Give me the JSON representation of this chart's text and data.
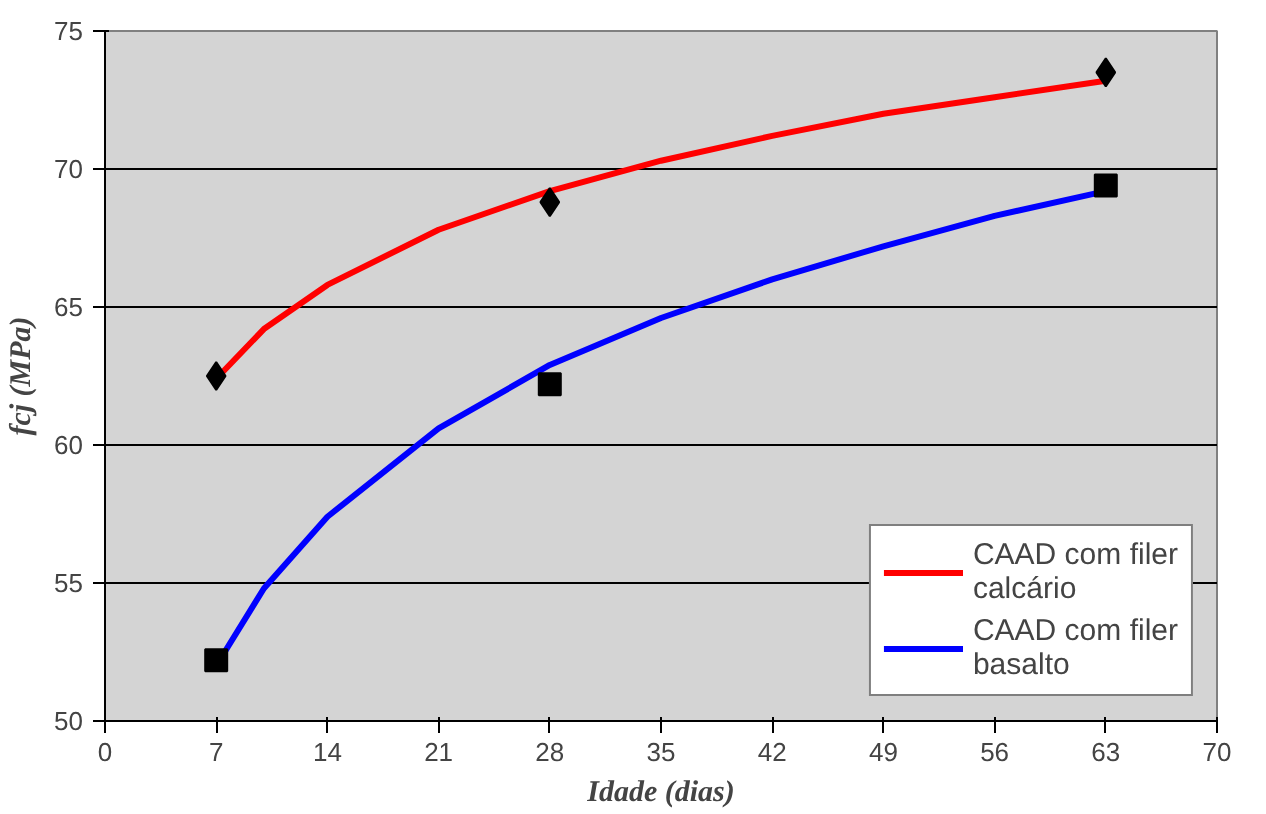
{
  "chart_data": {
    "type": "scatter",
    "xlabel": "Idade (dias)",
    "ylabel": "fcj (MPa)",
    "xlim": [
      0,
      70
    ],
    "xticks": [
      0,
      7,
      14,
      21,
      28,
      35,
      42,
      49,
      56,
      63,
      70
    ],
    "ylim": [
      50,
      75
    ],
    "yticks": [
      50,
      55,
      60,
      65,
      70,
      75
    ],
    "grid": "y",
    "legend": "bottom right",
    "series": [
      {
        "type": "line",
        "name": "CAAD com filer calcário",
        "color": "#ff0000",
        "marker": "none",
        "line_style": "solid",
        "x": [
          7,
          10,
          14,
          21,
          28,
          35,
          42,
          49,
          56,
          63
        ],
        "values": [
          62.4,
          64.2,
          65.8,
          67.8,
          69.2,
          70.3,
          71.2,
          72.0,
          72.6,
          73.2
        ]
      },
      {
        "type": "line",
        "name": "CAAD com filer basalto",
        "color": "#0000ff",
        "marker": "none",
        "line_style": "solid",
        "x": [
          7,
          10,
          14,
          21,
          28,
          35,
          42,
          49,
          56,
          63
        ],
        "values": [
          52.0,
          54.8,
          57.4,
          60.6,
          62.9,
          64.6,
          66.0,
          67.2,
          68.3,
          69.2
        ]
      },
      {
        "color": "#000000",
        "marker": "diamond",
        "x": [
          7,
          28,
          63
        ],
        "values": [
          62.5,
          68.8,
          73.5
        ]
      },
      {
        "color": "#000000",
        "marker": "square",
        "x": [
          7,
          28,
          63
        ],
        "values": [
          52.2,
          62.2,
          69.4
        ]
      }
    ]
  }
}
